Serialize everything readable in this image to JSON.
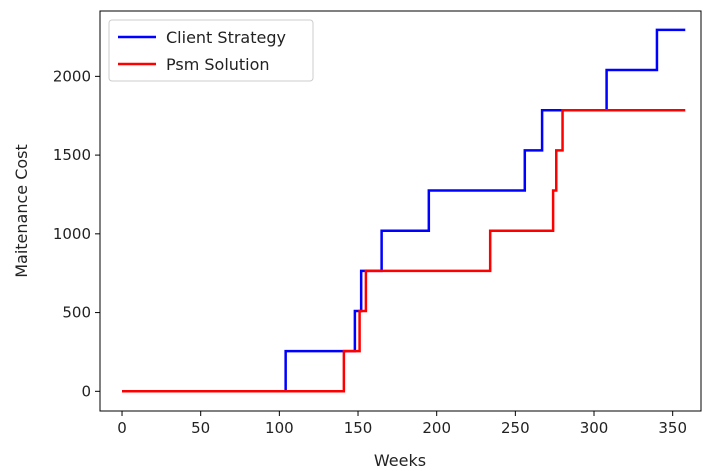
{
  "chart_data": {
    "type": "line",
    "title": "",
    "xlabel": "Weeks",
    "ylabel": "Maitenance Cost",
    "xlim": [
      -14,
      368
    ],
    "ylim": [
      -125,
      2415
    ],
    "xticks": [
      0,
      50,
      100,
      150,
      200,
      250,
      300,
      350
    ],
    "yticks": [
      0,
      500,
      1000,
      1500,
      2000
    ],
    "grid": false,
    "legend_position": "upper left",
    "step": "post",
    "series": [
      {
        "name": "Client Strategy",
        "color": "#0000ff",
        "x": [
          0,
          104,
          148,
          152,
          165,
          195,
          256,
          267,
          308,
          340,
          358
        ],
        "y": [
          0,
          255,
          510,
          765,
          1020,
          1275,
          1530,
          1785,
          2040,
          2295,
          2295
        ]
      },
      {
        "name": "Psm Solution",
        "color": "#ff0000",
        "x": [
          0,
          141,
          151,
          155,
          234,
          274,
          276,
          280,
          358
        ],
        "y": [
          0,
          255,
          510,
          765,
          1020,
          1275,
          1530,
          1785,
          1785
        ]
      }
    ]
  }
}
